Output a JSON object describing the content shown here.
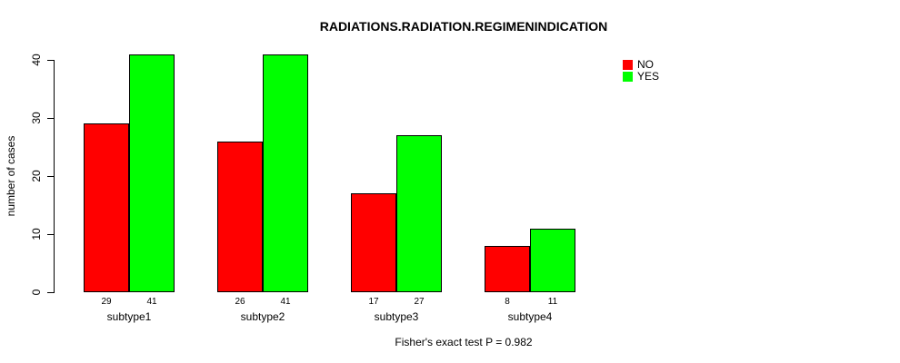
{
  "title": "RADIATIONS.RADIATION.REGIMENINDICATION",
  "footnote": "Fisher's exact test P = 0.982",
  "chart_data": {
    "type": "bar",
    "title": "RADIATIONS.RADIATION.REGIMENINDICATION",
    "categories": [
      "subtype1",
      "subtype2",
      "subtype3",
      "subtype4"
    ],
    "series": [
      {
        "name": "NO",
        "color": "#ff0000",
        "values": [
          29,
          26,
          17,
          8
        ]
      },
      {
        "name": "YES",
        "color": "#00ff00",
        "values": [
          41,
          41,
          27,
          11
        ]
      }
    ],
    "xlabel": "",
    "ylabel": "number of cases",
    "yticks": [
      0,
      10,
      20,
      30,
      40
    ],
    "ylim": [
      0,
      41
    ],
    "grid": false,
    "bar_value_labels": true,
    "legend_position": "top-right",
    "annotation": "Fisher's exact test P = 0.982"
  }
}
